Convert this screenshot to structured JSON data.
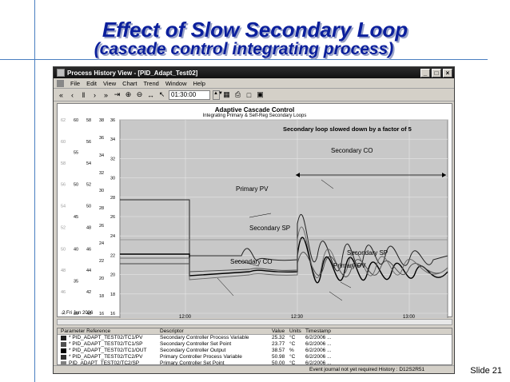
{
  "slide": {
    "title_line1": "Effect of Slow Secondary Loop",
    "title_line2": "(cascade control integrating process)",
    "slide_number": "Slide 21"
  },
  "window": {
    "title": "Process History View - [PID_Adapt_Test02]",
    "menu": [
      "File",
      "Edit",
      "View",
      "Chart",
      "Trend",
      "Window",
      "Help"
    ],
    "time_field": "01:30:00"
  },
  "chart": {
    "title": "Adaptive Cascade Control",
    "subtitle": "Integrating Primary & Self-Reg Secondary Loops",
    "date_label": "2 Fri Jun 2006",
    "x_ticks": [
      "12:00",
      "12:30",
      "13:00"
    ],
    "axis1_ticks": [
      "62",
      "60",
      "58",
      "56",
      "54",
      "52",
      "50",
      "48",
      "46",
      "44"
    ],
    "axis2_ticks": [
      "60",
      "55",
      "50",
      "45",
      "40",
      "35",
      "30"
    ],
    "axis3_ticks": [
      "58",
      "56",
      "54",
      "52",
      "50",
      "48",
      "46",
      "44",
      "42",
      "40"
    ],
    "axis4_ticks": [
      "38",
      "36",
      "34",
      "32",
      "30",
      "28",
      "26",
      "24",
      "22",
      "20",
      "18",
      "16"
    ],
    "axis5_ticks": [
      "36",
      "34",
      "32",
      "30",
      "28",
      "26",
      "24",
      "22",
      "20",
      "18",
      "16"
    ],
    "annotations": {
      "banner": "Secondary loop slowed down by a factor of 5",
      "sec_co_top": "Secondary CO",
      "primary_pv_left": "Primary PV",
      "secondary_sp_mid": "Secondary SP",
      "secondary_co_bottom": "Secondary CO",
      "secondary_sp_right": "Secondary SP",
      "primary_pv_right": "Primary PV"
    }
  },
  "table": {
    "headers": [
      "Parameter Reference",
      "Descriptor",
      "Value",
      "Units",
      "Timestamp"
    ],
    "rows": [
      {
        "ref": "* PID_ADAPT_TEST02/TC1/PV",
        "desc": "Secondary Controller Process Variable",
        "value": "25.32",
        "units": "°C",
        "ts": "6/2/2006 ...",
        "color": "#202020"
      },
      {
        "ref": "* PID_ADAPT_TEST02/TC1/SP",
        "desc": "Secondary Controller Set Point",
        "value": "23.77",
        "units": "°C",
        "ts": "6/2/2006 ...",
        "color": "#505050"
      },
      {
        "ref": "* PID_ADAPT_TEST02/TC1/OUT",
        "desc": "Secondary Controller Output",
        "value": "38.57",
        "units": "%",
        "ts": "6/2/2006 ...",
        "color": "#000000"
      },
      {
        "ref": "* PID_ADAPT_TEST02/TC2/PV",
        "desc": "Primary Controller Process Variable",
        "value": "50.98",
        "units": "°C",
        "ts": "6/2/2006 ...",
        "color": "#303030"
      },
      {
        "ref": "PID_ADAPT_TEST02/TC2/SP",
        "desc": "Primary Controller Set Point",
        "value": "50.00",
        "units": "°C",
        "ts": "6/2/2006 ...",
        "color": "#808080"
      }
    ]
  },
  "status": "Event journal not yet required  History : D12S2R51"
}
